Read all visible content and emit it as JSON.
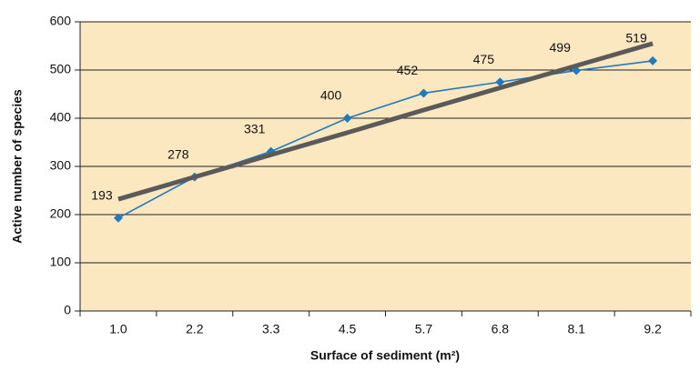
{
  "chart_data": {
    "type": "line",
    "xlabel": "Surface of sediment (m²)",
    "ylabel": "Active number of species",
    "categories": [
      "1.0",
      "2.2",
      "3.3",
      "4.5",
      "5.7",
      "6.8",
      "8.1",
      "9.2"
    ],
    "series": [
      {
        "color": "#1f7bc0",
        "values": [
          193,
          278,
          331,
          400,
          452,
          475,
          499,
          519
        ],
        "data_labels": true
      },
      {
        "color": "#5a5a5a",
        "values": [
          232,
          278,
          324,
          370,
          417,
          463,
          509,
          555
        ],
        "trendline": true
      }
    ],
    "ylim": [
      0,
      600
    ],
    "yticks": [
      0,
      100,
      200,
      300,
      400,
      500,
      600
    ],
    "grid": true,
    "plot_background": "#fbe7c0"
  }
}
